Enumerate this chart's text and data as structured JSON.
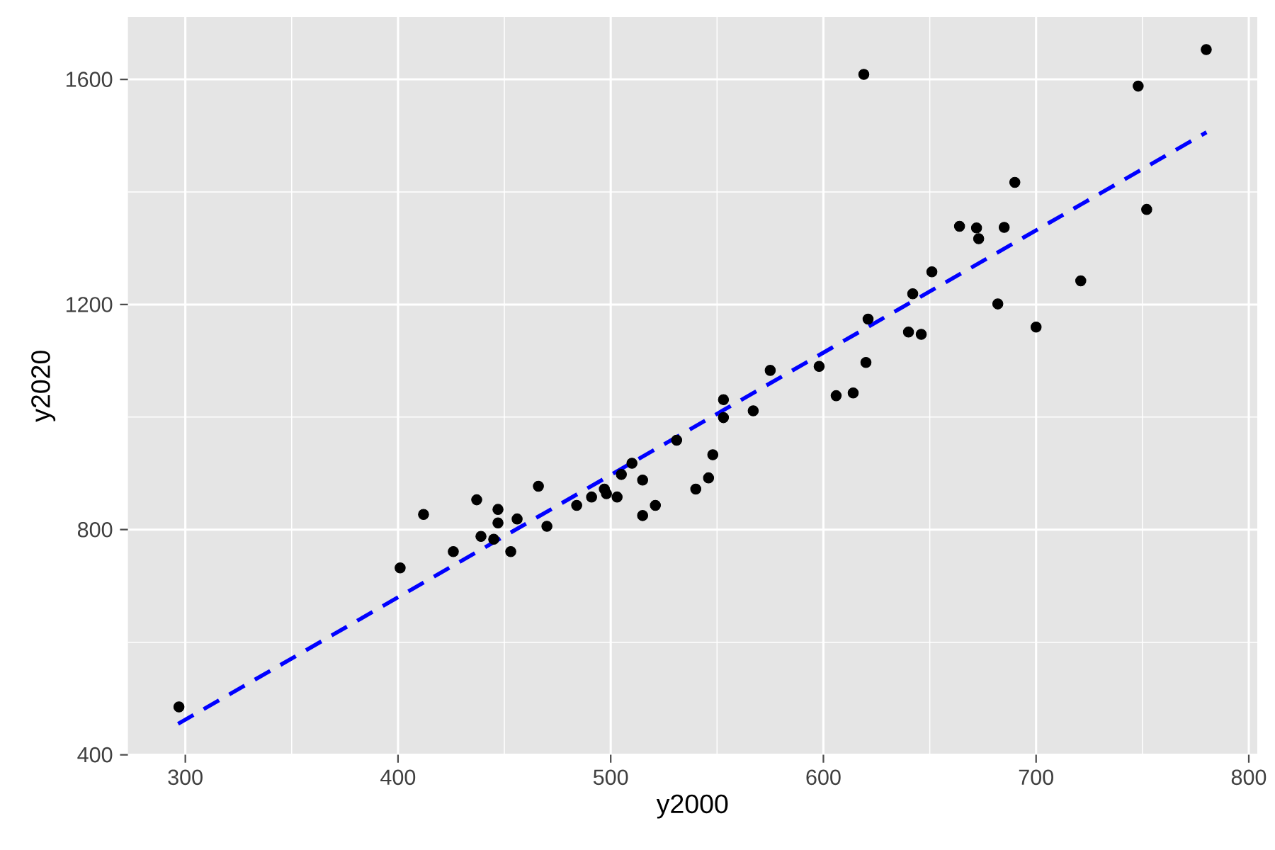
{
  "chart_data": {
    "type": "scatter",
    "xlabel": "y2000",
    "ylabel": "y2020",
    "xlim": [
      273,
      804
    ],
    "ylim": [
      400,
      1711
    ],
    "xticks": [
      300,
      400,
      500,
      600,
      700,
      800
    ],
    "yticks": [
      400,
      800,
      1200,
      1600
    ],
    "grid": true,
    "series": [
      {
        "color": "#000000",
        "marker": "circle",
        "x": [
          297,
          401,
          412,
          426,
          437,
          439,
          445,
          447,
          447,
          453,
          456,
          466,
          470,
          484,
          491,
          497,
          498,
          503,
          505,
          510,
          515,
          515,
          521,
          531,
          540,
          546,
          548,
          553,
          553,
          567,
          575,
          598,
          606,
          614,
          619,
          620,
          621,
          640,
          642,
          646,
          651,
          664,
          672,
          673,
          682,
          685,
          690,
          700,
          721,
          748,
          752,
          780
        ],
        "values": [
          485,
          732,
          827,
          761,
          853,
          788,
          783,
          812,
          836,
          761,
          819,
          877,
          806,
          843,
          858,
          872,
          864,
          858,
          898,
          918,
          888,
          825,
          843,
          959,
          872,
          892,
          933,
          999,
          1031,
          1011,
          1083,
          1090,
          1038,
          1043,
          1609,
          1097,
          1174,
          1151,
          1219,
          1147,
          1258,
          1339,
          1336,
          1317,
          1201,
          1337,
          1417,
          1160,
          1242,
          1588,
          1369,
          1653
        ]
      },
      {
        "type": "line",
        "color": "#0000ff",
        "line_style": "dashed",
        "marker": "none",
        "x": [
          296.6,
          780.1
        ],
        "values": [
          455,
          1506
        ]
      }
    ]
  }
}
